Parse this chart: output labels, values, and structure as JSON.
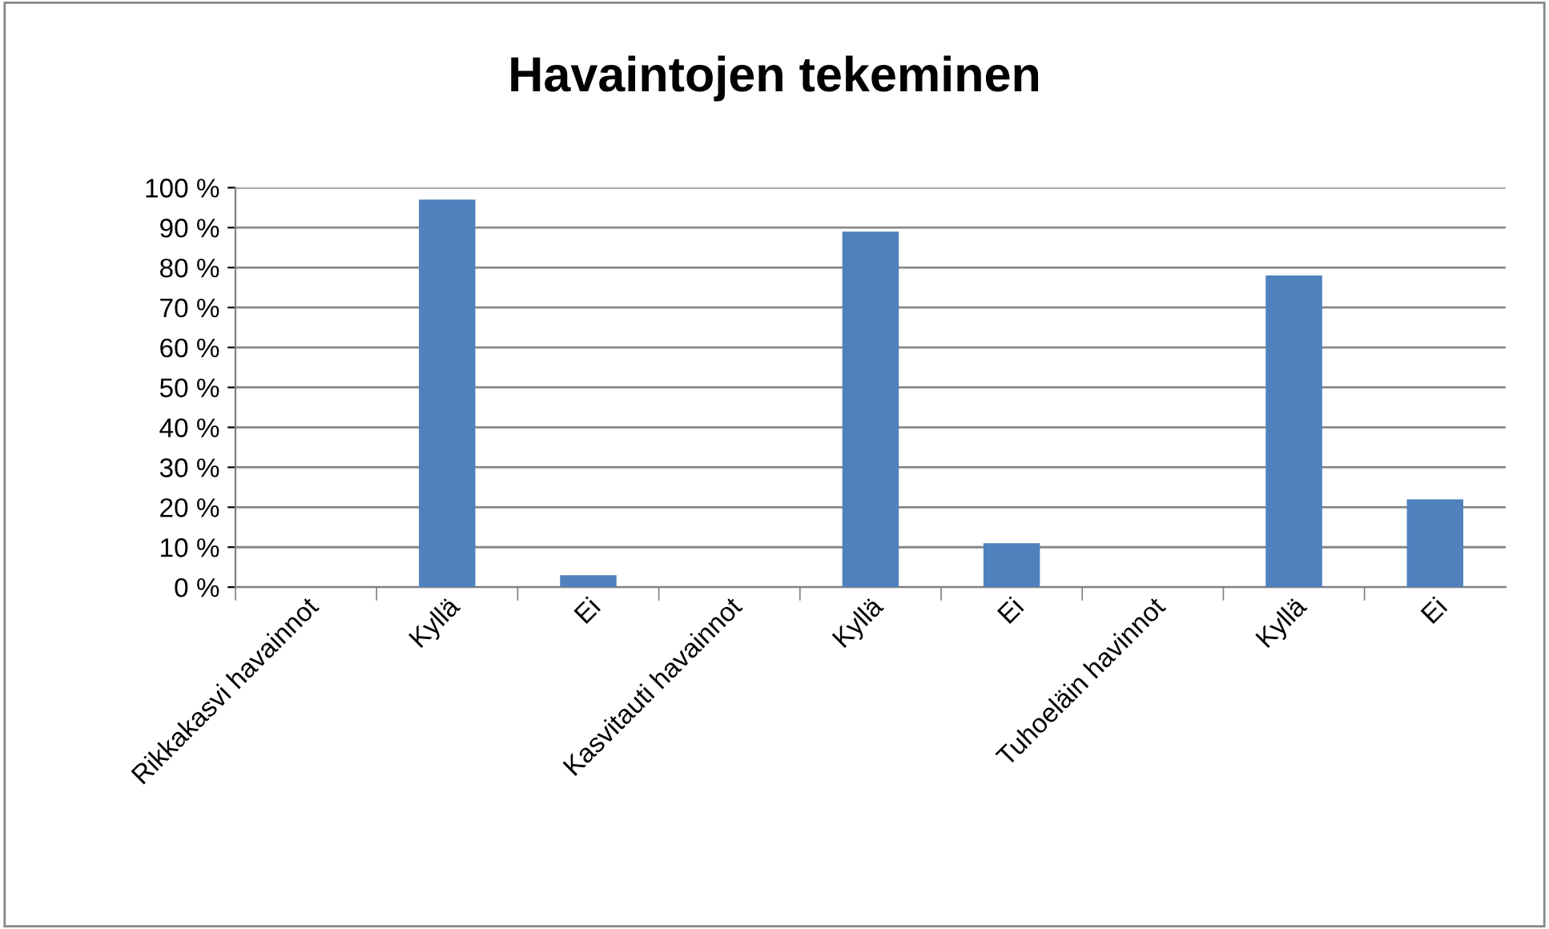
{
  "chart_data": {
    "type": "bar",
    "title": "Havaintojen tekeminen",
    "categories": [
      "Rikkakasvi havainnot",
      "Kyllä",
      "Ei",
      "Kasvitauti havainnot",
      "Kyllä",
      "Ei",
      "Tuhoeläin havinnot",
      "Kyllä",
      "Ei"
    ],
    "values": [
      null,
      97,
      3,
      null,
      89,
      11,
      null,
      78,
      22
    ],
    "color": "#4f81bd",
    "ylim": [
      0,
      100
    ],
    "yticks": [
      {
        "value": 0,
        "label": "0 %"
      },
      {
        "value": 10,
        "label": "10 %"
      },
      {
        "value": 20,
        "label": "20 %"
      },
      {
        "value": 30,
        "label": "30 %"
      },
      {
        "value": 40,
        "label": "40 %"
      },
      {
        "value": 50,
        "label": "50 %"
      },
      {
        "value": 60,
        "label": "60 %"
      },
      {
        "value": 70,
        "label": "70 %"
      },
      {
        "value": 80,
        "label": "80 %"
      },
      {
        "value": 90,
        "label": "90 %"
      },
      {
        "value": 100,
        "label": "100 %"
      }
    ],
    "grid": "y",
    "legend": false
  }
}
